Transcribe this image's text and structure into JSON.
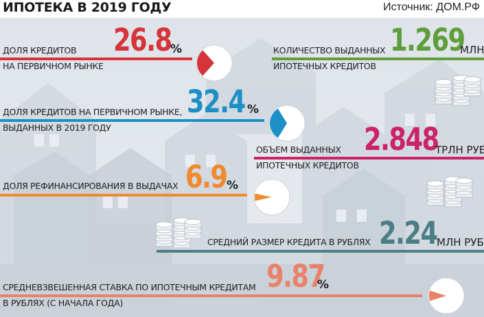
{
  "header": {
    "title": "ИПОТЕКА В 2019 ГОДУ",
    "source": "Источник: ДОМ.РФ"
  },
  "colors": {
    "red": "#d5343a",
    "green": "#5e9e3c",
    "blue": "#1d8fc7",
    "magenta": "#cc2367",
    "orange": "#ef8a2e",
    "teal": "#4b7d86",
    "salmon": "#e8826a"
  },
  "stats": {
    "primary_share": {
      "label_line1": "ДОЛЯ КРЕДИТОВ",
      "label_line2": "НА ПЕРВИЧНОМ РЫНКЕ",
      "value": "26.8",
      "unit": "%",
      "fraction": 0.268
    },
    "loans_count": {
      "label_line1": "КОЛИЧЕСТВО ВЫДАННЫХ",
      "label_line2": "ИПОТЕЧНЫХ КРЕДИТОВ",
      "value": "1.269",
      "unit": "МЛН"
    },
    "primary_share_2019": {
      "label_line1": "ДОЛЯ КРЕДИТОВ НА ПЕРВИЧНОМ РЫНКЕ,",
      "label_line2": "ВЫДАННЫХ В 2019 ГОДУ",
      "value": "32.4",
      "unit": "%",
      "fraction": 0.324
    },
    "loans_volume": {
      "label_line1": "ОБЪЕМ ВЫДАННЫХ",
      "label_line2": "ИПОТЕЧНЫХ КРЕДИТОВ",
      "value": "2.848",
      "unit": "ТРЛН РУБ."
    },
    "refinancing_share": {
      "label": "ДОЛЯ РЕФИНАНСИРОВАНИЯ В ВЫДАЧАХ",
      "value": "6.9",
      "unit": "%",
      "fraction": 0.069
    },
    "avg_loan": {
      "label": "СРЕДНИЙ РАЗМЕР КРЕДИТА В РУБЛЯХ",
      "value": "2.24",
      "unit": "МЛН РУБ."
    },
    "avg_rate": {
      "label_line1": "СРЕДНЕВЗВЕШЕННАЯ СТАВКА ПО ИПОТЕЧНЫМ КРЕДИТАМ",
      "label_line2": "В РУБЛЯХ (С НАЧАЛА ГОДА)",
      "value": "9.87",
      "unit": "%",
      "fraction": 0.0987
    }
  }
}
